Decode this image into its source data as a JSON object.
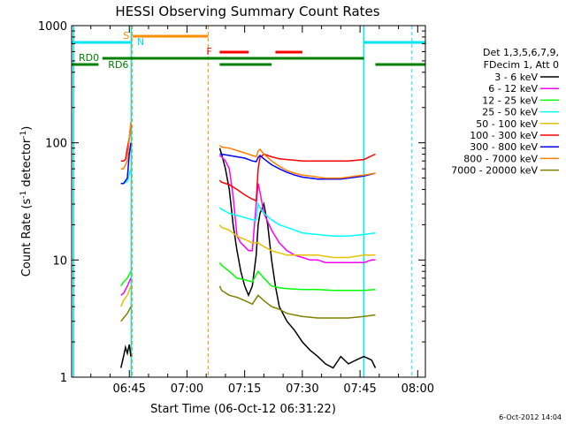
{
  "chart_data": {
    "type": "line",
    "title": "HESSI Observing Summary Count Rates",
    "xlabel": "Start Time (06-Oct-12 06:31:22)",
    "ylabel": "Count Rate (s",
    "ylabel_sup1": "-1",
    "ylabel_mid": " detector",
    "ylabel_sup2": "-1",
    "ylabel_end": ")",
    "y_scale": "log",
    "ylim": [
      1,
      1000
    ],
    "y_ticks": [
      "1",
      "10",
      "100",
      "1000"
    ],
    "x_range_minutes": [
      0,
      92
    ],
    "x_tick_labels": [
      "06:45",
      "07:00",
      "07:15",
      "07:30",
      "07:45",
      "08:00"
    ],
    "x_tick_minutes": [
      15,
      30,
      45,
      60,
      75,
      90
    ],
    "legend_header": [
      "Det 1,3,5,6,7,9,",
      "FDecim 1, Att 0"
    ],
    "legend_position": "right",
    "timestamp": "6-Oct-2012 14:04",
    "flags": {
      "saa_label": "S",
      "night_label": "N",
      "flare_label": "F",
      "rd0_label": "RD0",
      "rd6_label": "RD6",
      "colors": {
        "saa": "#ff8c00",
        "night": "#00e5ee",
        "flare": "#ff0000",
        "rd": "#008000"
      }
    },
    "vertical_markers_minutes": {
      "cyan_solid": [
        0.5,
        15.5,
        76
      ],
      "orange_dashed": [
        15.8,
        35.5
      ],
      "cyan_dashed": [
        88.5
      ]
    },
    "series": [
      {
        "name": "3 - 6 keV",
        "color": "#000000",
        "segments": [
          [
            [
              12.8,
              1.2
            ],
            [
              13.5,
              1.5
            ],
            [
              14,
              1.8
            ],
            [
              14.5,
              1.6
            ],
            [
              15,
              1.9
            ],
            [
              15.4,
              1.5
            ]
          ],
          [
            [
              38.5,
              90
            ],
            [
              39,
              80
            ],
            [
              40,
              60
            ],
            [
              41,
              40
            ],
            [
              42,
              20
            ],
            [
              43,
              12
            ],
            [
              44,
              8
            ],
            [
              45,
              6
            ],
            [
              46,
              5
            ],
            [
              47,
              6
            ],
            [
              48,
              11
            ],
            [
              48.5,
              20
            ],
            [
              49,
              25
            ],
            [
              50,
              30
            ],
            [
              51,
              20
            ],
            [
              52,
              10
            ],
            [
              53,
              6
            ],
            [
              54,
              4
            ],
            [
              56,
              3
            ],
            [
              58,
              2.5
            ],
            [
              60,
              2
            ],
            [
              62,
              1.7
            ],
            [
              64,
              1.5
            ],
            [
              66,
              1.3
            ],
            [
              68,
              1.2
            ],
            [
              70,
              1.5
            ],
            [
              72,
              1.3
            ],
            [
              74,
              1.4
            ],
            [
              76,
              1.5
            ],
            [
              78,
              1.4
            ],
            [
              79,
              1.2
            ]
          ]
        ]
      },
      {
        "name": "6 - 12 keV",
        "color": "#ff00ff",
        "segments": [
          [
            [
              12.8,
              5
            ],
            [
              13.5,
              5.2
            ],
            [
              14.5,
              6
            ],
            [
              15.4,
              7
            ]
          ],
          [
            [
              38.5,
              78
            ],
            [
              39,
              76
            ],
            [
              40,
              70
            ],
            [
              41,
              60
            ],
            [
              42,
              35
            ],
            [
              43,
              16
            ],
            [
              44,
              14
            ],
            [
              45,
              13
            ],
            [
              46,
              12
            ],
            [
              47,
              12
            ],
            [
              48,
              30
            ],
            [
              48.5,
              45
            ],
            [
              49,
              38
            ],
            [
              50,
              25
            ],
            [
              52,
              18
            ],
            [
              54,
              14
            ],
            [
              56,
              12
            ],
            [
              58,
              11
            ],
            [
              60,
              10.5
            ],
            [
              62,
              10
            ],
            [
              64,
              10
            ],
            [
              66,
              9.5
            ],
            [
              68,
              9.5
            ],
            [
              70,
              9.5
            ],
            [
              72,
              9.5
            ],
            [
              74,
              9.5
            ],
            [
              76,
              9.5
            ],
            [
              78,
              10
            ],
            [
              79,
              10
            ]
          ]
        ]
      },
      {
        "name": "12 - 25 keV",
        "color": "#00ff00",
        "segments": [
          [
            [
              12.8,
              6
            ],
            [
              13.5,
              6.5
            ],
            [
              14.5,
              7
            ],
            [
              15.4,
              8
            ]
          ],
          [
            [
              38.5,
              9.5
            ],
            [
              39,
              9
            ],
            [
              41,
              8
            ],
            [
              43,
              7
            ],
            [
              45,
              6.8
            ],
            [
              47,
              6.5
            ],
            [
              48.5,
              8
            ],
            [
              50,
              7
            ],
            [
              52,
              6
            ],
            [
              54,
              5.8
            ],
            [
              56,
              5.7
            ],
            [
              60,
              5.6
            ],
            [
              64,
              5.6
            ],
            [
              68,
              5.5
            ],
            [
              72,
              5.5
            ],
            [
              76,
              5.5
            ],
            [
              79,
              5.6
            ]
          ]
        ]
      },
      {
        "name": "25 - 50 keV",
        "color": "#00ffff",
        "segments": [
          [
            [
              12.8,
              45
            ],
            [
              13.5,
              45
            ],
            [
              14.5,
              47
            ],
            [
              15.4,
              60
            ]
          ],
          [
            [
              38.5,
              28
            ],
            [
              39,
              27
            ],
            [
              41,
              25
            ],
            [
              43,
              24
            ],
            [
              45,
              23
            ],
            [
              47,
              22
            ],
            [
              48,
              22
            ],
            [
              48.5,
              30
            ],
            [
              49,
              28
            ],
            [
              50,
              25
            ],
            [
              52,
              22
            ],
            [
              54,
              20
            ],
            [
              56,
              19
            ],
            [
              58,
              18
            ],
            [
              60,
              17
            ],
            [
              64,
              16.5
            ],
            [
              68,
              16
            ],
            [
              72,
              16
            ],
            [
              76,
              16.5
            ],
            [
              79,
              17
            ]
          ]
        ]
      },
      {
        "name": "50 - 100 keV",
        "color": "#e6c200",
        "segments": [
          [
            [
              12.8,
              4
            ],
            [
              13.5,
              4.5
            ],
            [
              14.5,
              5
            ],
            [
              15.4,
              6
            ]
          ],
          [
            [
              38.5,
              20
            ],
            [
              39,
              19
            ],
            [
              41,
              18
            ],
            [
              43,
              16
            ],
            [
              45,
              15
            ],
            [
              47,
              14
            ],
            [
              48.5,
              14
            ],
            [
              50,
              13
            ],
            [
              52,
              12
            ],
            [
              54,
              11.5
            ],
            [
              56,
              11
            ],
            [
              60,
              11
            ],
            [
              64,
              11
            ],
            [
              68,
              10.5
            ],
            [
              72,
              10.5
            ],
            [
              76,
              11
            ],
            [
              79,
              11
            ]
          ]
        ]
      },
      {
        "name": "100 - 300 keV",
        "color": "#ff0000",
        "segments": [
          [
            [
              12.8,
              70
            ],
            [
              13.5,
              70
            ],
            [
              14,
              72
            ],
            [
              14.5,
              90
            ],
            [
              15,
              110
            ],
            [
              15.4,
              140
            ]
          ],
          [
            [
              38.5,
              48
            ],
            [
              39,
              46
            ],
            [
              41,
              44
            ],
            [
              43,
              40
            ],
            [
              45,
              36
            ],
            [
              47,
              33
            ],
            [
              48,
              32
            ],
            [
              48.5,
              60
            ],
            [
              49,
              75
            ],
            [
              50,
              80
            ],
            [
              52,
              76
            ],
            [
              54,
              73
            ],
            [
              56,
              72
            ],
            [
              58,
              71
            ],
            [
              60,
              70
            ],
            [
              64,
              70
            ],
            [
              68,
              70
            ],
            [
              72,
              70
            ],
            [
              76,
              72
            ],
            [
              79,
              80
            ]
          ]
        ]
      },
      {
        "name": "300 - 800 keV",
        "color": "#0000ff",
        "segments": [
          [
            [
              12.8,
              45
            ],
            [
              13.5,
              45
            ],
            [
              14.5,
              50
            ],
            [
              15,
              80
            ],
            [
              15.4,
              100
            ]
          ],
          [
            [
              38.5,
              80
            ],
            [
              39,
              80
            ],
            [
              41,
              78
            ],
            [
              43,
              76
            ],
            [
              45,
              74
            ],
            [
              47,
              70
            ],
            [
              48,
              69
            ],
            [
              48.5,
              75
            ],
            [
              49,
              78
            ],
            [
              50,
              73
            ],
            [
              52,
              65
            ],
            [
              54,
              60
            ],
            [
              56,
              56
            ],
            [
              58,
              53
            ],
            [
              60,
              51
            ],
            [
              62,
              50
            ],
            [
              64,
              49
            ],
            [
              66,
              49
            ],
            [
              68,
              49
            ],
            [
              70,
              49
            ],
            [
              72,
              50
            ],
            [
              74,
              51
            ],
            [
              76,
              52
            ],
            [
              79,
              55
            ]
          ]
        ]
      },
      {
        "name": "800 - 7000 keV",
        "color": "#ff8000",
        "segments": [
          [
            [
              12.8,
              60
            ],
            [
              13.5,
              60
            ],
            [
              14.5,
              70
            ],
            [
              15,
              110
            ],
            [
              15.4,
              150
            ]
          ],
          [
            [
              38.5,
              95
            ],
            [
              39,
              92
            ],
            [
              41,
              90
            ],
            [
              43,
              86
            ],
            [
              45,
              82
            ],
            [
              47,
              78
            ],
            [
              48,
              76
            ],
            [
              48.5,
              85
            ],
            [
              49,
              88
            ],
            [
              50,
              80
            ],
            [
              52,
              70
            ],
            [
              54,
              63
            ],
            [
              56,
              58
            ],
            [
              58,
              55
            ],
            [
              60,
              53
            ],
            [
              62,
              52
            ],
            [
              64,
              51
            ],
            [
              66,
              50
            ],
            [
              68,
              50
            ],
            [
              70,
              50
            ],
            [
              72,
              51
            ],
            [
              74,
              52
            ],
            [
              76,
              53
            ],
            [
              79,
              55
            ]
          ]
        ]
      },
      {
        "name": "7000 - 20000 keV",
        "color": "#808000",
        "segments": [
          [
            [
              12.8,
              3
            ],
            [
              13.5,
              3.2
            ],
            [
              14.5,
              3.5
            ],
            [
              15.4,
              4
            ]
          ],
          [
            [
              38.5,
              6
            ],
            [
              39,
              5.5
            ],
            [
              41,
              5
            ],
            [
              43,
              4.8
            ],
            [
              45,
              4.5
            ],
            [
              47,
              4.2
            ],
            [
              48.5,
              5
            ],
            [
              50,
              4.5
            ],
            [
              52,
              4
            ],
            [
              54,
              3.8
            ],
            [
              56,
              3.5
            ],
            [
              60,
              3.3
            ],
            [
              64,
              3.2
            ],
            [
              68,
              3.2
            ],
            [
              72,
              3.2
            ],
            [
              76,
              3.3
            ],
            [
              79,
              3.4
            ]
          ]
        ]
      }
    ]
  }
}
